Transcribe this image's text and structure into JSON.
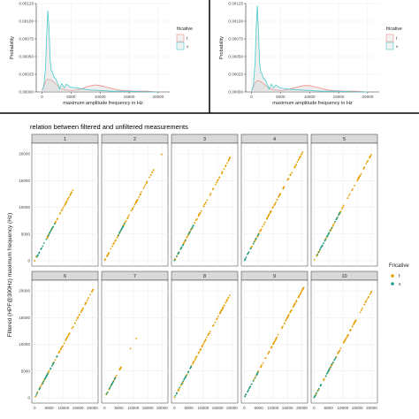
{
  "colors": {
    "f_line": "#f08a84",
    "x_line": "#46c9cc",
    "f_point": "#e69f00",
    "x_point": "#1f9e89",
    "strip": "#d9d9d9",
    "panel_border": "#333333",
    "grid": "#ebebeb"
  },
  "chart_data": [
    {
      "type": "line",
      "id": "density-left",
      "xlabel": "maximum amplitude frequency in Hz",
      "ylabel": "Probability",
      "xlim": [
        -1000,
        22000
      ],
      "ylim": [
        0,
        0.00125
      ],
      "x_ticks": [
        0,
        5000,
        10000,
        15000,
        20000
      ],
      "x_tick_labels": [
        "0",
        "5000",
        "10000",
        "15000",
        "20000"
      ],
      "y_ticks": [
        0,
        0.00025,
        0.0005,
        0.00075,
        0.001,
        0.00125
      ],
      "y_tick_labels": [
        "0.00000",
        "0.00025",
        "0.00050",
        "0.00075",
        "0.00100",
        "0.00125"
      ],
      "legend_title": "fricative",
      "legend_position": "right",
      "series": [
        {
          "name": "f",
          "x": [
            0,
            300,
            600,
            1000,
            1500,
            2000,
            2500,
            3000,
            3500,
            4000,
            5000,
            6000,
            7000,
            8000,
            9000,
            10000,
            11000,
            12000,
            13000,
            14000,
            16000,
            18000,
            20000
          ],
          "values": [
            2e-05,
            8e-05,
            0.00015,
            0.00018,
            0.00017,
            0.00014,
            0.0001,
            6e-05,
            4e-05,
            3e-05,
            2e-05,
            3e-05,
            5e-05,
            8e-05,
            0.0001,
            9e-05,
            7e-05,
            5e-05,
            3e-05,
            2e-05,
            1e-05,
            1e-05,
            0.0
          ]
        },
        {
          "name": "x",
          "x": [
            0,
            300,
            600,
            800,
            1000,
            1200,
            1400,
            1600,
            1800,
            2000,
            2400,
            2800,
            3000,
            3400,
            3800,
            4200,
            4800,
            5500,
            6500,
            8000,
            10000,
            12000,
            15000,
            18000,
            20000
          ],
          "values": [
            2e-05,
            8e-05,
            0.00035,
            0.0008,
            0.00115,
            0.0009,
            0.00045,
            0.0003,
            0.00028,
            0.00022,
            0.00018,
            0.0001,
            4e-05,
            0.00012,
            6e-05,
            0.00011,
            7e-05,
            6e-05,
            5e-05,
            3e-05,
            2e-05,
            1e-05,
            1e-05,
            0.0,
            0.0
          ]
        }
      ]
    },
    {
      "type": "line",
      "id": "density-right",
      "xlabel": "maximum amplitude frequency in Hz",
      "ylabel": "Probability",
      "xlim": [
        -1000,
        22000
      ],
      "ylim": [
        0,
        0.00125
      ],
      "x_ticks": [
        0,
        5000,
        10000,
        15000,
        20000
      ],
      "x_tick_labels": [
        "0",
        "5000",
        "10000",
        "15000",
        "20000"
      ],
      "y_ticks": [
        0,
        0.00025,
        0.0005,
        0.00075,
        0.001,
        0.00125
      ],
      "y_tick_labels": [
        "0.00000",
        "0.00025",
        "0.00050",
        "0.00075",
        "0.00100",
        "0.00125"
      ],
      "legend_title": "fricative",
      "legend_position": "right",
      "series": [
        {
          "name": "f",
          "x": [
            0,
            300,
            600,
            1000,
            1500,
            2000,
            2500,
            3000,
            3500,
            4000,
            5000,
            6000,
            7000,
            8000,
            9000,
            10000,
            11000,
            12000,
            13000,
            14000,
            16000,
            18000,
            20000
          ],
          "values": [
            2e-05,
            7e-05,
            0.00013,
            0.00016,
            0.00015,
            0.00012,
            9e-05,
            6e-05,
            4e-05,
            3e-05,
            2e-05,
            3e-05,
            5e-05,
            7e-05,
            9e-05,
            9e-05,
            7e-05,
            5e-05,
            3e-05,
            2e-05,
            1e-05,
            1e-05,
            0.0
          ]
        },
        {
          "name": "x",
          "x": [
            0,
            300,
            600,
            800,
            1000,
            1200,
            1400,
            1600,
            1800,
            2000,
            2400,
            2800,
            3000,
            3400,
            3800,
            4200,
            4800,
            5500,
            6500,
            8000,
            10000,
            12000,
            15000,
            18000,
            20000
          ],
          "values": [
            2e-05,
            8e-05,
            0.0004,
            0.0009,
            0.00122,
            0.00085,
            0.0004,
            0.00028,
            0.00026,
            0.0002,
            0.00017,
            9e-05,
            4e-05,
            0.00011,
            6e-05,
            0.0001,
            6e-05,
            5e-05,
            4e-05,
            3e-05,
            2e-05,
            1e-05,
            1e-05,
            0.0,
            0.0
          ]
        }
      ]
    },
    {
      "type": "scatter",
      "id": "facets",
      "title": "relation between filtered and unfiltered measurements",
      "ylabel": "Filtered (HPF@300Hz) maximum frequency (Hz)",
      "xlim": [
        -1000,
        22000
      ],
      "ylim": [
        -1000,
        22000
      ],
      "x_ticks": [
        0,
        5000,
        10000,
        15000,
        20000
      ],
      "x_tick_labels": [
        "0",
        "5000",
        "10000",
        "15000",
        "20000"
      ],
      "y_ticks": [
        0,
        5000,
        10000,
        15000,
        20000
      ],
      "y_tick_labels": [
        "0",
        "5000",
        "10000",
        "15000",
        "20000"
      ],
      "legend_title": "Fricative",
      "legend_position": "right",
      "legend": [
        {
          "name": "f"
        },
        {
          "name": "x"
        }
      ],
      "panels": [
        {
          "label": "1",
          "f_range": [
            3000,
            13500
          ],
          "x_range": [
            300,
            7000
          ],
          "extra": [
            [
              0,
              0
            ],
            [
              500,
              800
            ]
          ]
        },
        {
          "label": "2",
          "f_range": [
            0,
            17500
          ],
          "x_range": [
            4000,
            7500
          ],
          "extra": [
            [
              19800,
              19900
            ]
          ]
        },
        {
          "label": "3",
          "f_range": [
            0,
            19500
          ],
          "x_range": [
            0,
            7000
          ],
          "extra": []
        },
        {
          "label": "4",
          "f_range": [
            0,
            20500
          ],
          "x_range": [
            0,
            5000
          ],
          "extra": []
        },
        {
          "label": "5",
          "f_range": [
            0,
            20000
          ],
          "x_range": [
            0,
            9000
          ],
          "extra": []
        },
        {
          "label": "6",
          "f_range": [
            0,
            20500
          ],
          "x_range": [
            0,
            8000
          ],
          "extra": []
        },
        {
          "label": "7",
          "f_range": [
            500,
            6000
          ],
          "x_range": [
            0,
            4000
          ],
          "extra": [
            [
              9000,
              9200
            ],
            [
              11000,
              11100
            ],
            [
              5500,
              5600
            ]
          ]
        },
        {
          "label": "8",
          "f_range": [
            0,
            20000
          ],
          "x_range": [
            0,
            6000
          ],
          "extra": []
        },
        {
          "label": "9",
          "f_range": [
            0,
            21500
          ],
          "x_range": [
            0,
            6000
          ],
          "extra": []
        },
        {
          "label": "10",
          "f_range": [
            0,
            20000
          ],
          "x_range": [
            0,
            8000
          ],
          "extra": []
        }
      ]
    }
  ]
}
